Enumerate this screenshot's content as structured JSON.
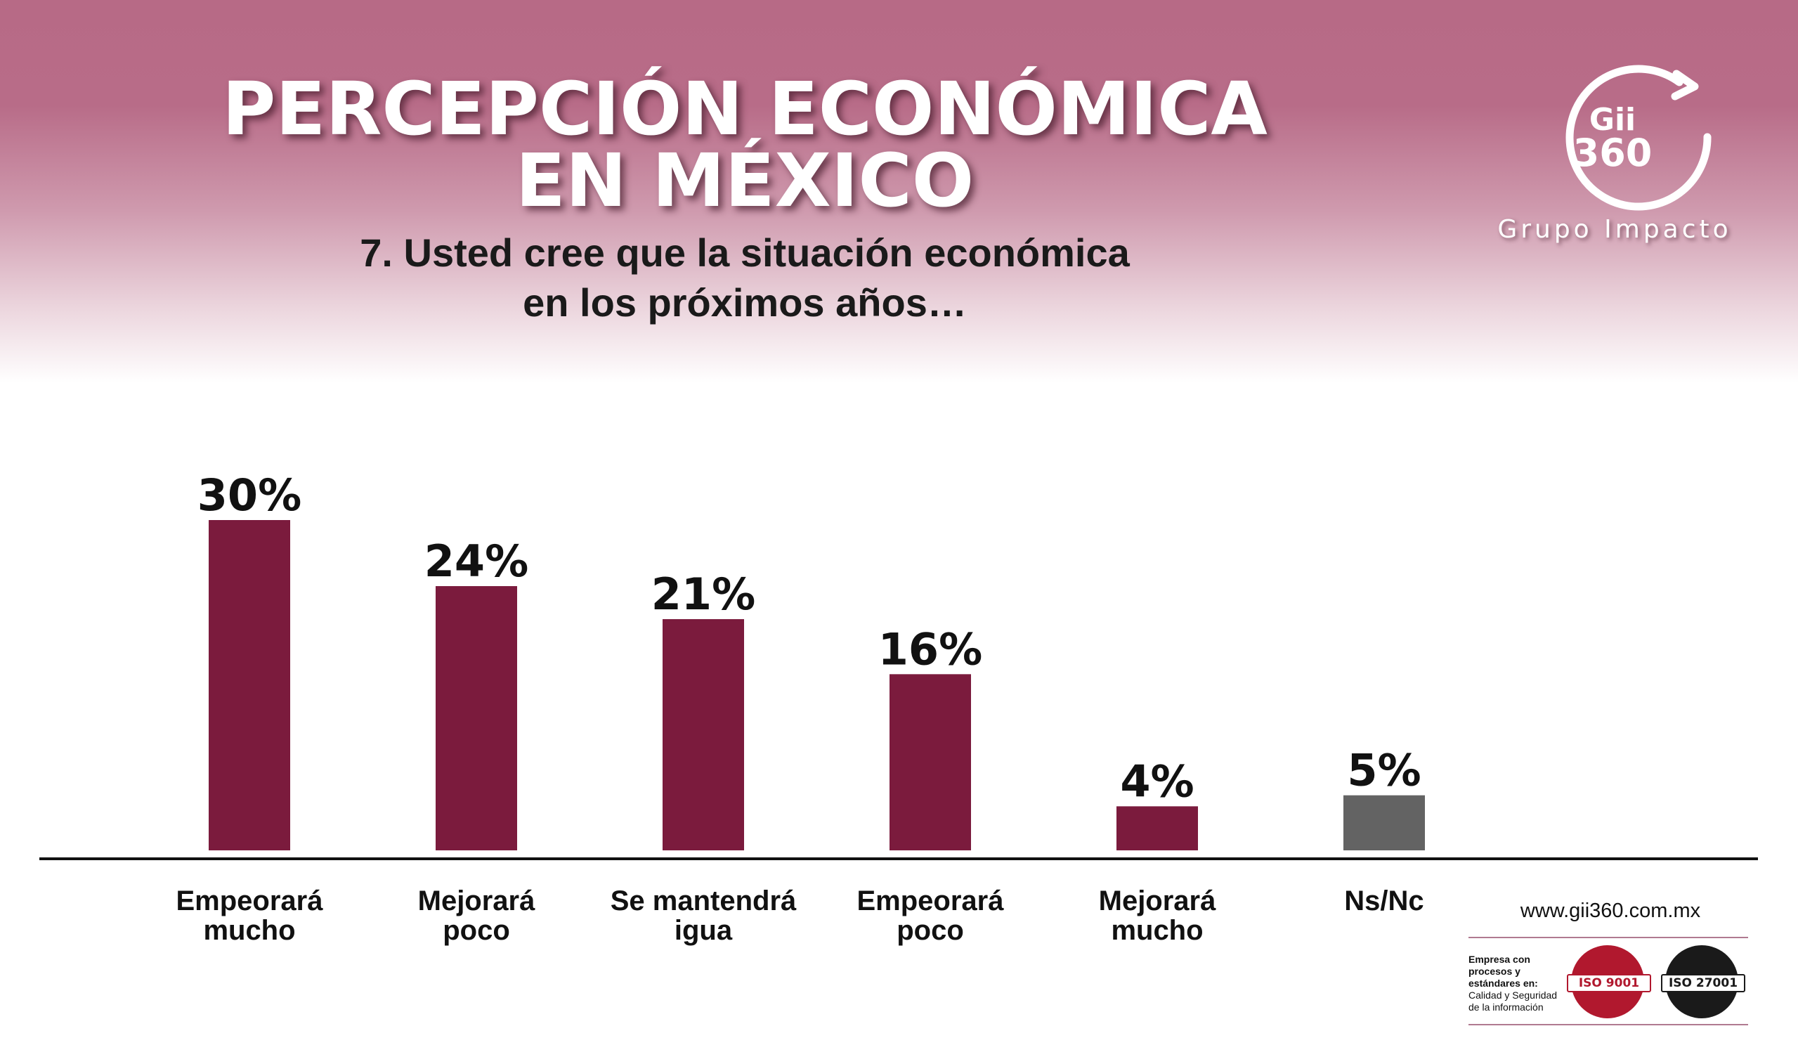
{
  "header": {
    "title_line1": "PERCEPCIÓN ECONÓMICA",
    "title_line2": "EN MÉXICO",
    "subtitle_line1": "7. Usted cree que la situación económica",
    "subtitle_line2": "en los próximos años…"
  },
  "logo": {
    "line1": "Gii",
    "line2": "360",
    "company": "Grupo Impacto"
  },
  "footer": {
    "website": "www.gii360.com.mx",
    "iso_strong": "Empresa con procesos y estándares en:",
    "iso_regular": "Calidad y Seguridad de la información",
    "badge1": "ISO 9001",
    "badge2": "ISO 27001"
  },
  "colors": {
    "header": "#b76a86",
    "bar_primary": "#7b1b3d",
    "bar_secondary": "#636363",
    "axis": "#111111"
  },
  "chart_data": {
    "type": "bar",
    "categories": [
      [
        "Empeorará",
        "mucho"
      ],
      [
        "Mejorará",
        "poco"
      ],
      [
        "Se mantendrá",
        "igua"
      ],
      [
        "Empeorará",
        "poco"
      ],
      [
        "Mejorará",
        "mucho"
      ],
      [
        "Ns/Nc"
      ]
    ],
    "values": [
      30,
      24,
      21,
      16,
      4,
      5
    ],
    "value_labels": [
      "30%",
      "24%",
      "21%",
      "16%",
      "4%",
      "5%"
    ],
    "bar_colors": [
      "#7b1b3d",
      "#7b1b3d",
      "#7b1b3d",
      "#7b1b3d",
      "#7b1b3d",
      "#636363"
    ],
    "ylim": [
      0,
      30
    ],
    "grid": false,
    "legend": "none"
  }
}
